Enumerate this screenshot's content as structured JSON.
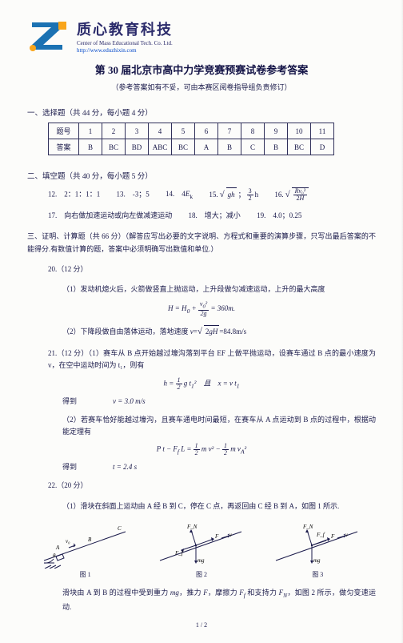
{
  "header": {
    "org_cn": "质心教育科技",
    "org_en": "Center of Mass Educational Tech. Co. Ltd.",
    "url": "http://www.eduzhixin.com",
    "logo_color": "#1b72b3",
    "logo_accent": "#f9a51b"
  },
  "title": "第 30 届北京市高中力学竞赛预赛试卷参考答案",
  "subtitle": "（参考答案如有不妥，可由本赛区阅卷指导组负责修订）",
  "sec1": {
    "head": "一、选择题（共 44 分，每小题 4 分）",
    "label_q": "题号",
    "label_a": "答案",
    "nums": [
      "1",
      "2",
      "3",
      "4",
      "5",
      "6",
      "7",
      "8",
      "9",
      "10",
      "11"
    ],
    "ans": [
      "B",
      "BC",
      "BD",
      "ABC",
      "BC",
      "A",
      "B",
      "C",
      "B",
      "BC",
      "D"
    ]
  },
  "sec2": {
    "head": "二、填空题（共 40 分，每小题 5 分）",
    "i12": "12.　2：1：1：1",
    "i13": "13.　-3；5",
    "i14": "14.　4E_k",
    "i15a": "15.",
    "i15b": "；",
    "i15c": "h",
    "i16": "16.",
    "i17": "17.　向右做加速运动或向左做减速运动",
    "i18": "18.　增大；减小",
    "i19": "19.　4.0；0.25"
  },
  "sec3": {
    "head": "三、证明、计算题（共 66 分）（解答应写出必要的文字说明、方程式和重要的演算步骤，只写出最后答案的不能得分.有数值计算的题，答案中必须明确写出数值和单位.）",
    "q20h": "20.（12 分）",
    "q20_1": "（1）发动机熄火后，火箭做竖直上抛运动，上升段做匀减速运动，上升的最大高度",
    "q20_eq1": "H=H₀+ v₀² / 2g =360m.",
    "q20_2": "（2）下降段做自由落体运动，落地速度 v=√(2gH)=84.8m/s",
    "q21h": "21.（12 分）（1）赛车从 B 点开始越过壕沟落到平台 EF 上做平抛运动，设赛车通过 B 点的最小速度为 v，在空中运动时间为 t₁，则有",
    "q21_eq1": "h = ½ g t₁²　且　x = v t₁",
    "q21_get": "得到",
    "q21_eq2": "v = 3.0 m/s",
    "q21_2": "（2）若赛车恰好能越过壕沟，且赛车通电时间最短，在赛车从 A 点运动到 B 点的过程中，根据动能定理有",
    "q21_eq3": "P t − F_f L = ½ m v² − ½ m v_A²",
    "q21_eq4": "t = 2.4 s",
    "q22h": "22.（20 分）",
    "q22_1": "（1）滑块在斜面上运动由 A 经 B 到 C，停在 C 点，再返回由 C 经 B 到 A，如图 1 所示.",
    "fig1": "图 1",
    "fig2": "图 2",
    "fig3": "图 3",
    "q22_tail": "滑块由 A 到 B 的过程中受到重力 mg，推力 F，摩擦力 F_f 和支持力 F_N，如图 2 所示，做匀变速运动.",
    "pg": "1 / 2"
  }
}
